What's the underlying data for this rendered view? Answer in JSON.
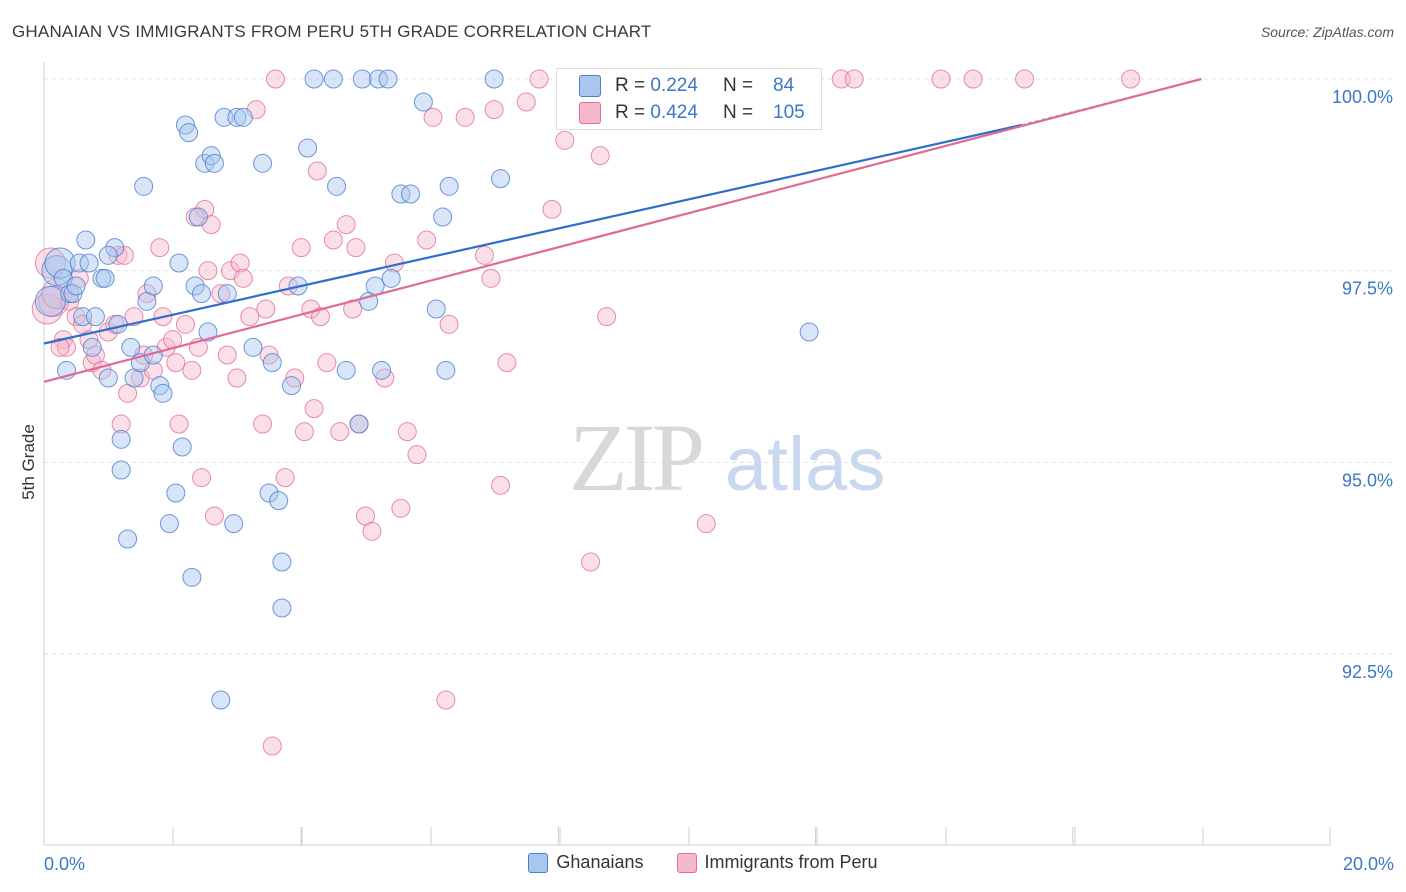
{
  "title": "GHANAIAN VS IMMIGRANTS FROM PERU 5TH GRADE CORRELATION CHART",
  "source": "Source: ZipAtlas.com",
  "watermark": {
    "zip": "ZIP",
    "atlas": "atlas"
  },
  "legend": {
    "ghanaians_label": "Ghanaians",
    "peru_label": "Immigrants from Peru"
  },
  "stats": {
    "r_label": "R =",
    "n_label": "N =",
    "ghanaians": {
      "r": "0.224",
      "n": "84"
    },
    "peru": {
      "r": "0.424",
      "n": "105"
    }
  },
  "axis": {
    "x_min_label": "0.0%",
    "x_max_label": "20.0%",
    "y_ticks": [
      "100.0%",
      "97.5%",
      "95.0%",
      "92.5%"
    ]
  },
  "chart_data": {
    "type": "scatter",
    "title": "GHANAIAN VS IMMIGRANTS FROM PERU 5TH GRADE CORRELATION CHART",
    "xlabel": "",
    "ylabel": "5th Grade",
    "xlim": [
      0,
      20
    ],
    "ylim": [
      90.3,
      100.2
    ],
    "y_ticks": [
      92.5,
      95.0,
      97.5,
      100.0
    ],
    "grid": true,
    "legend_position": "bottom",
    "colors": {
      "ghanaians": "#4a80d0",
      "peru": "#e0709a",
      "ghanaians_fill": "#a9c6ef",
      "peru_fill": "#f6b8cc"
    },
    "series": [
      {
        "name": "Ghanaians",
        "trend": {
          "x": [
            0,
            15.2
          ],
          "y": [
            96.55,
            99.4
          ],
          "dashed_to": [
            18.0,
            100.0
          ]
        },
        "points": [
          [
            0.1,
            97.1
          ],
          [
            0.2,
            97.5
          ],
          [
            0.25,
            97.6
          ],
          [
            0.3,
            97.4
          ],
          [
            0.35,
            96.2
          ],
          [
            0.4,
            97.2
          ],
          [
            0.45,
            97.2
          ],
          [
            0.55,
            97.6
          ],
          [
            0.6,
            96.9
          ],
          [
            0.65,
            97.9
          ],
          [
            0.7,
            97.6
          ],
          [
            0.75,
            96.5
          ],
          [
            0.8,
            96.9
          ],
          [
            0.9,
            97.4
          ],
          [
            0.95,
            97.4
          ],
          [
            1.0,
            96.1
          ],
          [
            1.1,
            97.8
          ],
          [
            1.15,
            96.8
          ],
          [
            1.2,
            95.3
          ],
          [
            1.2,
            94.9
          ],
          [
            1.3,
            94.0
          ],
          [
            1.35,
            96.5
          ],
          [
            1.4,
            96.1
          ],
          [
            1.5,
            96.3
          ],
          [
            1.55,
            98.6
          ],
          [
            1.6,
            97.1
          ],
          [
            1.7,
            96.4
          ],
          [
            1.7,
            97.3
          ],
          [
            1.8,
            96.0
          ],
          [
            1.85,
            95.9
          ],
          [
            1.95,
            94.2
          ],
          [
            2.05,
            94.6
          ],
          [
            2.1,
            97.6
          ],
          [
            2.15,
            95.2
          ],
          [
            2.2,
            99.4
          ],
          [
            2.25,
            99.3
          ],
          [
            2.3,
            93.5
          ],
          [
            2.35,
            97.3
          ],
          [
            2.4,
            98.2
          ],
          [
            2.45,
            97.2
          ],
          [
            2.5,
            98.9
          ],
          [
            2.55,
            96.7
          ],
          [
            2.6,
            99.0
          ],
          [
            2.65,
            98.9
          ],
          [
            2.8,
            99.5
          ],
          [
            2.85,
            97.2
          ],
          [
            2.95,
            94.2
          ],
          [
            3.0,
            99.5
          ],
          [
            3.1,
            99.5
          ],
          [
            3.25,
            96.5
          ],
          [
            3.4,
            98.9
          ],
          [
            3.5,
            94.6
          ],
          [
            3.55,
            96.3
          ],
          [
            3.65,
            94.5
          ],
          [
            3.7,
            93.7
          ],
          [
            3.7,
            93.1
          ],
          [
            3.85,
            96.0
          ],
          [
            3.95,
            97.3
          ],
          [
            4.1,
            99.1
          ],
          [
            4.2,
            100.0
          ],
          [
            4.5,
            100.0
          ],
          [
            4.55,
            98.6
          ],
          [
            4.7,
            96.2
          ],
          [
            4.9,
            95.5
          ],
          [
            4.95,
            100.0
          ],
          [
            5.05,
            97.1
          ],
          [
            5.15,
            97.3
          ],
          [
            5.2,
            100.0
          ],
          [
            5.25,
            96.2
          ],
          [
            5.35,
            100.0
          ],
          [
            5.4,
            97.4
          ],
          [
            5.55,
            98.5
          ],
          [
            5.7,
            98.5
          ],
          [
            5.9,
            99.7
          ],
          [
            6.1,
            97.0
          ],
          [
            6.2,
            98.2
          ],
          [
            6.25,
            96.2
          ],
          [
            6.3,
            98.6
          ],
          [
            7.0,
            100.0
          ],
          [
            7.1,
            98.7
          ],
          [
            11.9,
            96.7
          ],
          [
            2.75,
            91.9
          ],
          [
            0.5,
            97.3
          ],
          [
            1.0,
            97.7
          ]
        ]
      },
      {
        "name": "Immigrants from Peru",
        "trend": {
          "x": [
            0,
            18.0
          ],
          "y": [
            96.05,
            100.0
          ]
        },
        "points": [
          [
            0.05,
            97.0
          ],
          [
            0.1,
            97.6
          ],
          [
            0.15,
            97.1
          ],
          [
            0.2,
            97.2
          ],
          [
            0.3,
            96.6
          ],
          [
            0.35,
            96.5
          ],
          [
            0.4,
            97.1
          ],
          [
            0.5,
            96.9
          ],
          [
            0.6,
            96.8
          ],
          [
            0.7,
            96.6
          ],
          [
            0.75,
            96.3
          ],
          [
            0.8,
            96.4
          ],
          [
            0.9,
            96.2
          ],
          [
            1.0,
            96.7
          ],
          [
            1.1,
            96.8
          ],
          [
            1.15,
            97.7
          ],
          [
            1.2,
            95.5
          ],
          [
            1.3,
            95.9
          ],
          [
            1.4,
            96.9
          ],
          [
            1.5,
            96.1
          ],
          [
            1.55,
            96.4
          ],
          [
            1.6,
            97.2
          ],
          [
            1.7,
            96.2
          ],
          [
            1.8,
            97.8
          ],
          [
            1.85,
            96.9
          ],
          [
            1.9,
            96.5
          ],
          [
            2.0,
            96.6
          ],
          [
            2.05,
            96.3
          ],
          [
            2.1,
            95.5
          ],
          [
            2.2,
            96.8
          ],
          [
            2.3,
            96.2
          ],
          [
            2.4,
            96.5
          ],
          [
            2.45,
            94.8
          ],
          [
            2.5,
            98.3
          ],
          [
            2.55,
            97.5
          ],
          [
            2.6,
            98.1
          ],
          [
            2.65,
            94.3
          ],
          [
            2.75,
            97.2
          ],
          [
            2.85,
            96.4
          ],
          [
            2.9,
            97.5
          ],
          [
            3.0,
            96.1
          ],
          [
            3.05,
            97.6
          ],
          [
            3.1,
            97.4
          ],
          [
            3.2,
            96.9
          ],
          [
            3.3,
            99.6
          ],
          [
            3.4,
            95.5
          ],
          [
            3.45,
            97.0
          ],
          [
            3.5,
            96.4
          ],
          [
            3.6,
            100.0
          ],
          [
            3.75,
            94.8
          ],
          [
            3.8,
            97.3
          ],
          [
            3.9,
            96.1
          ],
          [
            4.0,
            97.8
          ],
          [
            4.05,
            95.4
          ],
          [
            4.15,
            97.0
          ],
          [
            4.2,
            95.7
          ],
          [
            4.3,
            96.9
          ],
          [
            4.4,
            96.3
          ],
          [
            4.5,
            97.9
          ],
          [
            4.6,
            95.4
          ],
          [
            4.7,
            98.1
          ],
          [
            4.8,
            97.0
          ],
          [
            4.85,
            97.8
          ],
          [
            4.9,
            95.5
          ],
          [
            5.0,
            94.3
          ],
          [
            5.1,
            94.1
          ],
          [
            5.3,
            96.1
          ],
          [
            5.45,
            97.6
          ],
          [
            5.55,
            94.4
          ],
          [
            5.65,
            95.4
          ],
          [
            5.8,
            95.1
          ],
          [
            5.95,
            97.9
          ],
          [
            6.05,
            99.5
          ],
          [
            6.25,
            91.9
          ],
          [
            6.3,
            96.8
          ],
          [
            6.55,
            99.5
          ],
          [
            6.85,
            97.7
          ],
          [
            6.95,
            97.4
          ],
          [
            7.0,
            99.6
          ],
          [
            7.1,
            94.7
          ],
          [
            7.2,
            96.3
          ],
          [
            7.5,
            99.7
          ],
          [
            7.7,
            100.0
          ],
          [
            7.9,
            98.3
          ],
          [
            8.1,
            99.2
          ],
          [
            8.35,
            100.0
          ],
          [
            8.5,
            93.7
          ],
          [
            8.65,
            99.0
          ],
          [
            8.75,
            96.9
          ],
          [
            8.85,
            100.0
          ],
          [
            9.6,
            100.0
          ],
          [
            10.1,
            100.0
          ],
          [
            10.3,
            94.2
          ],
          [
            12.4,
            100.0
          ],
          [
            12.6,
            100.0
          ],
          [
            13.95,
            100.0
          ],
          [
            14.45,
            100.0
          ],
          [
            15.25,
            100.0
          ],
          [
            16.9,
            100.0
          ],
          [
            3.55,
            91.3
          ],
          [
            0.25,
            96.5
          ],
          [
            0.55,
            97.4
          ],
          [
            1.25,
            97.7
          ],
          [
            2.35,
            98.2
          ],
          [
            4.25,
            98.8
          ]
        ]
      }
    ]
  }
}
